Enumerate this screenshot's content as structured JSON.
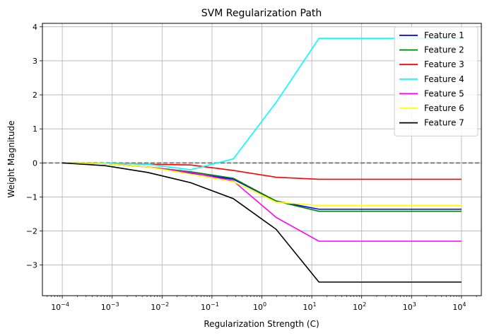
{
  "chart_data": {
    "type": "line",
    "title": "SVM Regularization Path",
    "xlabel": "Regularization Strength (C)",
    "ylabel": "Weight Magnitude",
    "x_scale": "log",
    "xlim": [
      4e-05,
      25000
    ],
    "ylim": [
      -3.9,
      4.1
    ],
    "x_ticks": [
      0.0001,
      0.001,
      0.01,
      0.1,
      1,
      10,
      100,
      1000,
      10000
    ],
    "x_tick_labels": [
      {
        "base": "10",
        "exp": "−4"
      },
      {
        "base": "10",
        "exp": "−3"
      },
      {
        "base": "10",
        "exp": "−2"
      },
      {
        "base": "10",
        "exp": "−1"
      },
      {
        "base": "10",
        "exp": "0"
      },
      {
        "base": "10",
        "exp": "1"
      },
      {
        "base": "10",
        "exp": "2"
      },
      {
        "base": "10",
        "exp": "3"
      },
      {
        "base": "10",
        "exp": "4"
      }
    ],
    "y_ticks": [
      -3,
      -2,
      -1,
      0,
      1,
      2,
      3,
      4
    ],
    "y_tick_labels": [
      "−3",
      "−2",
      "−1",
      "0",
      "1",
      "2",
      "3",
      "4"
    ],
    "grid": true,
    "legend_position": "top-right",
    "reference_line": {
      "y": 0,
      "color": "#808080",
      "style": "dashed"
    },
    "x": [
      0.0001,
      0.00072,
      0.00518,
      0.0373,
      0.268,
      1.93,
      13.9,
      100,
      720,
      5180,
      10000
    ],
    "series": [
      {
        "name": "Feature 1",
        "color": "#0000ff",
        "values": [
          0,
          -0.02,
          -0.12,
          -0.3,
          -0.48,
          -1.12,
          -1.36,
          -1.36,
          -1.36,
          -1.36,
          -1.36
        ]
      },
      {
        "name": "Feature 2",
        "color": "#008000",
        "values": [
          0,
          -0.02,
          -0.12,
          -0.26,
          -0.45,
          -1.12,
          -1.42,
          -1.42,
          -1.42,
          -1.42,
          -1.42
        ]
      },
      {
        "name": "Feature 3",
        "color": "#ff0000",
        "values": [
          0,
          -0.01,
          -0.04,
          -0.06,
          -0.22,
          -0.42,
          -0.48,
          -0.48,
          -0.48,
          -0.48,
          -0.48
        ]
      },
      {
        "name": "Feature 4",
        "color": "#00ffff",
        "values": [
          0,
          -0.01,
          -0.04,
          -0.2,
          0.12,
          1.78,
          3.66,
          3.66,
          3.66,
          3.66,
          3.66
        ]
      },
      {
        "name": "Feature 5",
        "color": "#ff00ff",
        "values": [
          0,
          -0.02,
          -0.12,
          -0.28,
          -0.53,
          -1.6,
          -2.3,
          -2.3,
          -2.3,
          -2.3,
          -2.3
        ]
      },
      {
        "name": "Feature 6",
        "color": "#ffff00",
        "values": [
          0,
          -0.02,
          -0.12,
          -0.33,
          -0.55,
          -1.15,
          -1.25,
          -1.25,
          -1.25,
          -1.25,
          -1.25
        ]
      },
      {
        "name": "Feature 7",
        "color": "#000000",
        "values": [
          0,
          -0.08,
          -0.28,
          -0.58,
          -1.05,
          -1.95,
          -3.5,
          -3.5,
          -3.5,
          -3.5,
          -3.5
        ]
      }
    ]
  }
}
